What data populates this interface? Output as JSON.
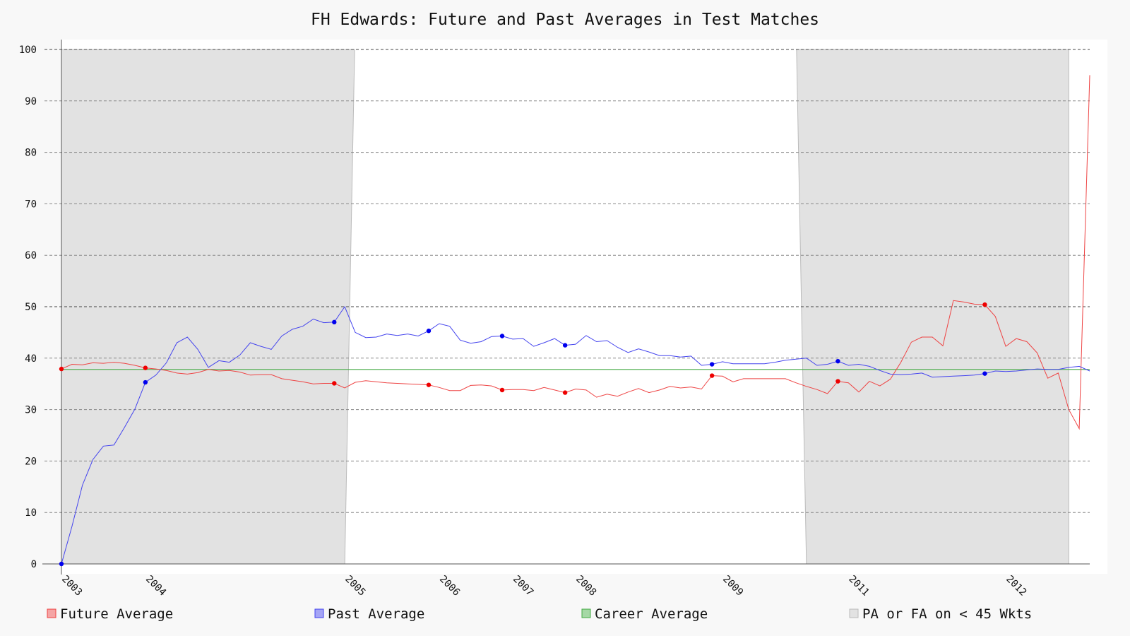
{
  "chart_data": {
    "type": "line",
    "title": "FH Edwards: Future and Past Averages in Test Matches",
    "xlabel": "",
    "ylabel": "",
    "ylim": [
      0,
      100
    ],
    "y_ticks": [
      0,
      10,
      20,
      30,
      40,
      50,
      60,
      70,
      80,
      90,
      100
    ],
    "x_tick_labels": [
      "2003",
      "2004",
      "2005",
      "2006",
      "2007",
      "2008",
      "2009",
      "2011",
      "2012"
    ],
    "grid": "horizontal dashed",
    "legend_position": "bottom",
    "colors": {
      "future": "#ee4444",
      "past": "#4444ee",
      "career": "#44aa44",
      "shade": "#e2e2e2"
    },
    "shaded_regions": [
      {
        "label": "PA or FA on < 45 Wkts",
        "from_index": 0,
        "to_index": 27
      },
      {
        "label": "PA or FA on < 45 Wkts",
        "from_index": 71,
        "to_index": 96
      }
    ],
    "career_average": 37.8,
    "series": [
      {
        "name": "Future Average",
        "values": [
          37.9,
          38.8,
          38.7,
          39.1,
          39.0,
          39.2,
          39.0,
          38.6,
          38.1,
          37.9,
          37.6,
          37.1,
          36.9,
          37.2,
          37.8,
          37.5,
          37.6,
          37.3,
          36.7,
          36.8,
          36.8,
          36.0,
          35.7,
          35.4,
          35.0,
          35.1,
          35.1,
          34.2,
          35.3,
          35.6,
          35.4,
          35.2,
          35.1,
          35.0,
          34.9,
          34.8,
          34.3,
          33.7,
          33.7,
          34.7,
          34.8,
          34.6,
          33.8,
          33.9,
          33.9,
          33.7,
          34.3,
          33.8,
          33.3,
          34.0,
          33.8,
          32.4,
          33.0,
          32.6,
          33.4,
          34.1,
          33.3,
          33.8,
          34.5,
          34.2,
          34.4,
          34.0,
          36.6,
          36.5,
          35.4,
          36.0,
          36.0,
          36.0,
          36.0,
          36.0,
          35.2,
          34.5,
          33.9,
          33.1,
          35.5,
          35.2,
          33.4,
          35.5,
          34.6,
          35.9,
          39.2,
          43.1,
          44.1,
          44.1,
          42.4,
          51.2,
          50.9,
          50.5,
          50.4,
          48.1,
          42.3,
          43.8,
          43.2,
          41.0,
          36.1,
          37.1,
          30.0,
          26.3,
          95.0
        ],
        "markers": [
          0,
          8,
          26,
          35,
          42,
          48,
          62,
          74,
          88
        ]
      },
      {
        "name": "Past Average",
        "values": [
          0.0,
          7.3,
          15.3,
          20.3,
          22.9,
          23.1,
          26.5,
          30.1,
          35.3,
          36.7,
          39.1,
          43.0,
          44.1,
          41.7,
          38.2,
          39.5,
          39.2,
          40.6,
          43.0,
          42.3,
          41.7,
          44.3,
          45.6,
          46.2,
          47.6,
          46.9,
          47.0,
          50.0,
          45.0,
          44.0,
          44.1,
          44.7,
          44.4,
          44.7,
          44.3,
          45.3,
          46.7,
          46.2,
          43.5,
          42.9,
          43.2,
          44.2,
          44.3,
          43.7,
          43.8,
          42.3,
          43.0,
          43.8,
          42.5,
          42.7,
          44.4,
          43.2,
          43.4,
          42.1,
          41.1,
          41.8,
          41.2,
          40.5,
          40.5,
          40.2,
          40.4,
          38.6,
          38.8,
          39.3,
          38.9,
          38.9,
          38.9,
          38.9,
          39.2,
          39.6,
          39.8,
          40.0,
          38.6,
          38.8,
          39.4,
          38.6,
          38.8,
          38.4,
          37.6,
          36.9,
          36.8,
          36.9,
          37.1,
          36.3,
          36.4,
          36.5,
          36.6,
          36.7,
          37.0,
          37.5,
          37.4,
          37.5,
          37.7,
          37.9,
          37.8,
          37.8,
          38.2,
          38.4,
          37.5
        ],
        "markers": [
          0,
          8,
          26,
          35,
          42,
          48,
          62,
          74,
          88
        ]
      },
      {
        "name": "Career Average",
        "values": []
      }
    ],
    "x_tick_indices": [
      0,
      8,
      27,
      36,
      43,
      49,
      63,
      75,
      90
    ],
    "legend": [
      {
        "label": "Future Average",
        "swatch": "#f5a5a5",
        "border": "#ee4444"
      },
      {
        "label": "Past Average",
        "swatch": "#a5a5f5",
        "border": "#4444ee"
      },
      {
        "label": "Career Average",
        "swatch": "#a5d8a5",
        "border": "#44aa44"
      },
      {
        "label": "PA or FA on < 45 Wkts",
        "swatch": "#e2e2e2",
        "border": "#bbbbbb"
      }
    ]
  }
}
